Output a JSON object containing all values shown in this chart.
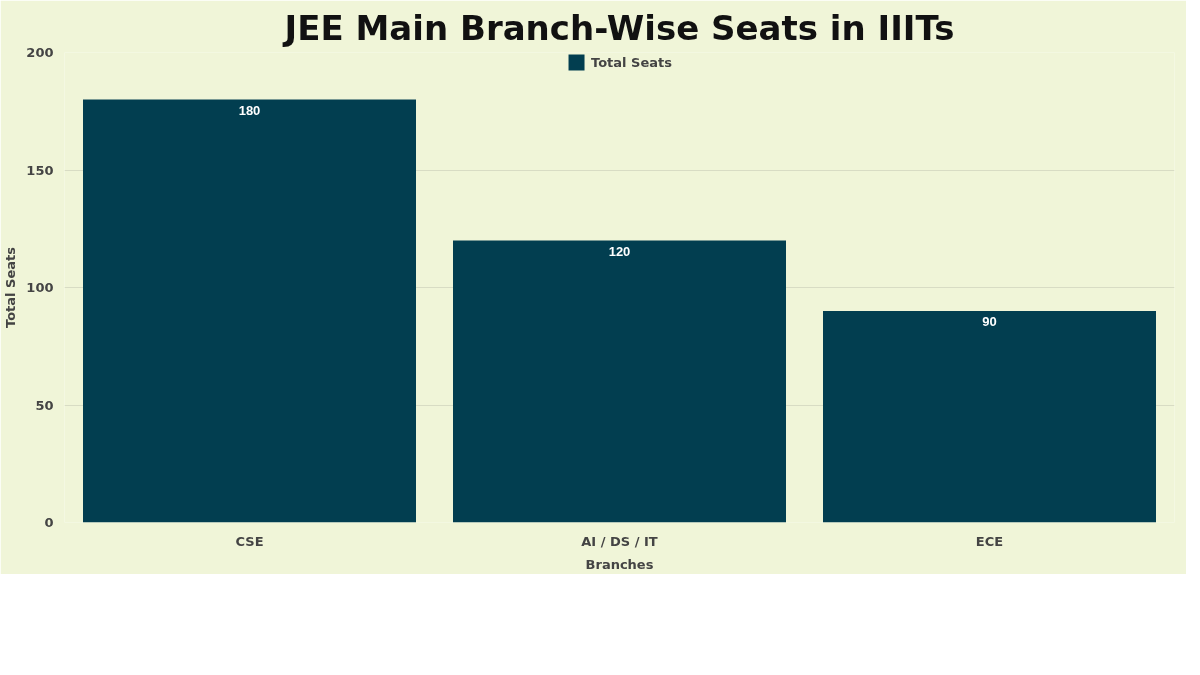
{
  "chart_data": {
    "type": "bar",
    "title": "JEE Main Branch-Wise Seats in IIITs",
    "xlabel": "Branches",
    "ylabel": "Total Seats",
    "categories": [
      "CSE",
      "AI / DS / IT",
      "ECE"
    ],
    "series": [
      {
        "name": "Total Seats",
        "color": "#023e50",
        "values": [
          180,
          120,
          90
        ]
      }
    ],
    "ylim": [
      0,
      200
    ],
    "yticks": [
      0,
      50,
      100,
      150,
      200
    ],
    "grid": "y",
    "legend": "top",
    "data_labels": true
  }
}
